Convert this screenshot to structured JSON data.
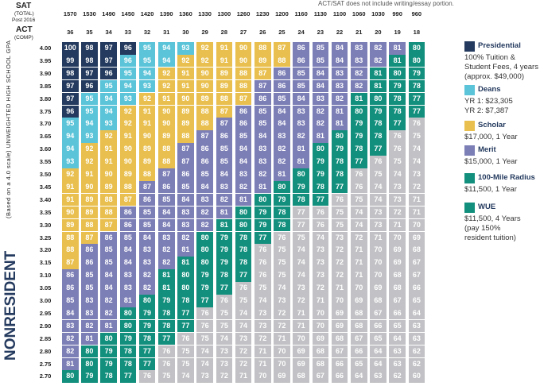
{
  "header": {
    "sat_label": "SAT",
    "sat_sub1": "(TOTAL)",
    "sat_sub2": "Post 2016",
    "act_label": "ACT",
    "act_sub": "(COMP)",
    "note": "ACT/SAT does not include writing/essay portion."
  },
  "sat_scores": [
    "1570",
    "1530",
    "1490",
    "1450",
    "1420",
    "1390",
    "1360",
    "1330",
    "1300",
    "1260",
    "1230",
    "1200",
    "1160",
    "1130",
    "1100",
    "1060",
    "1030",
    "990",
    "960"
  ],
  "act_scores": [
    "36",
    "35",
    "34",
    "33",
    "32",
    "31",
    "30",
    "29",
    "28",
    "27",
    "26",
    "25",
    "24",
    "23",
    "22",
    "21",
    "20",
    "19",
    "18"
  ],
  "gpa_values": [
    "4.00",
    "3.95",
    "3.90",
    "3.85",
    "3.80",
    "3.75",
    "3.70",
    "3.65",
    "3.60",
    "3.55",
    "3.50",
    "3.45",
    "3.40",
    "3.35",
    "3.30",
    "3.25",
    "3.20",
    "3.15",
    "3.10",
    "3.05",
    "3.00",
    "2.95",
    "2.90",
    "2.85",
    "2.80",
    "2.75",
    "2.70"
  ],
  "axis_label": "(Based on a 4.0 scale) UNWEIGHTED HIGH SCHOOL GPA",
  "side_label": "NONRESIDENT",
  "colors": {
    "P": "#243a5e",
    "D": "#5bc4d8",
    "S": "#e9c04f",
    "M": "#7c7eb6",
    "R": "#138f7d",
    "W": "#138f7d",
    "G": "#c2c2c6"
  },
  "grid": [
    [
      "P100",
      "P98",
      "P97",
      "P96",
      "D95",
      "D94",
      "D93",
      "S92",
      "S91",
      "S90",
      "S88",
      "S87",
      "M86",
      "M85",
      "M84",
      "M83",
      "M82",
      "M81",
      "R80"
    ],
    [
      "P99",
      "P98",
      "P97",
      "D96",
      "D95",
      "D94",
      "S92",
      "S92",
      "S91",
      "S90",
      "S89",
      "S88",
      "M86",
      "M85",
      "M84",
      "M83",
      "M82",
      "R81",
      "R80"
    ],
    [
      "P98",
      "P97",
      "P96",
      "D95",
      "D94",
      "S92",
      "S91",
      "S90",
      "S89",
      "S88",
      "S87",
      "M86",
      "M85",
      "M84",
      "M83",
      "M82",
      "R81",
      "R80",
      "R79"
    ],
    [
      "P97",
      "P96",
      "D95",
      "D94",
      "D93",
      "S92",
      "S91",
      "S90",
      "S89",
      "S88",
      "M87",
      "M86",
      "M85",
      "M84",
      "M83",
      "M82",
      "R81",
      "R79",
      "R78"
    ],
    [
      "P97",
      "D95",
      "D94",
      "D93",
      "S92",
      "S91",
      "S90",
      "S89",
      "S88",
      "S87",
      "M86",
      "M85",
      "M84",
      "M83",
      "M82",
      "R81",
      "R80",
      "R78",
      "R77"
    ],
    [
      "P96",
      "D95",
      "D94",
      "S92",
      "S91",
      "S90",
      "S89",
      "S88",
      "S87",
      "M86",
      "M85",
      "M84",
      "M83",
      "M82",
      "M81",
      "R80",
      "R79",
      "R78",
      "R77"
    ],
    [
      "D95",
      "D94",
      "D93",
      "S92",
      "S91",
      "S90",
      "S89",
      "S88",
      "M87",
      "M86",
      "M85",
      "M84",
      "M83",
      "M82",
      "M81",
      "R79",
      "R78",
      "R77",
      "G76"
    ],
    [
      "D94",
      "D93",
      "S92",
      "S91",
      "S90",
      "S89",
      "S88",
      "M87",
      "M86",
      "M85",
      "M84",
      "M83",
      "M82",
      "M81",
      "R80",
      "R79",
      "R78",
      "G76",
      "G75"
    ],
    [
      "D94",
      "S92",
      "S91",
      "S90",
      "S89",
      "S88",
      "M87",
      "M86",
      "M85",
      "M84",
      "M83",
      "M82",
      "M81",
      "R80",
      "R79",
      "R78",
      "R77",
      "G76",
      "G74"
    ],
    [
      "D93",
      "S92",
      "S91",
      "S90",
      "S89",
      "S88",
      "M87",
      "M86",
      "M85",
      "M84",
      "M83",
      "M82",
      "M81",
      "R79",
      "R78",
      "R77",
      "G76",
      "G75",
      "G74"
    ],
    [
      "S92",
      "S91",
      "S90",
      "S89",
      "S88",
      "M87",
      "M86",
      "M85",
      "M84",
      "M83",
      "M82",
      "M81",
      "R80",
      "R79",
      "R78",
      "G76",
      "G75",
      "G74",
      "G73"
    ],
    [
      "S91",
      "S90",
      "S89",
      "S88",
      "M87",
      "M86",
      "M85",
      "M84",
      "M83",
      "M82",
      "M81",
      "R80",
      "R79",
      "R78",
      "R77",
      "G76",
      "G74",
      "G73",
      "G72"
    ],
    [
      "S91",
      "S89",
      "S88",
      "S87",
      "M86",
      "M85",
      "M84",
      "M83",
      "M82",
      "M81",
      "R80",
      "R79",
      "R78",
      "R77",
      "G76",
      "G75",
      "G74",
      "G73",
      "G71"
    ],
    [
      "S90",
      "S89",
      "S88",
      "M86",
      "M85",
      "M84",
      "M83",
      "M82",
      "M81",
      "R80",
      "R79",
      "R78",
      "G77",
      "G76",
      "G75",
      "G74",
      "G73",
      "G72",
      "G71"
    ],
    [
      "S89",
      "S88",
      "S87",
      "M86",
      "M85",
      "M84",
      "M83",
      "M82",
      "R81",
      "R80",
      "R79",
      "R78",
      "G77",
      "G76",
      "G75",
      "G74",
      "G73",
      "G71",
      "G70"
    ],
    [
      "S88",
      "S87",
      "M86",
      "M85",
      "M84",
      "M83",
      "M82",
      "R80",
      "R79",
      "R78",
      "R77",
      "G76",
      "G75",
      "G74",
      "G73",
      "G72",
      "G71",
      "G70",
      "G69"
    ],
    [
      "S88",
      "M86",
      "M85",
      "M84",
      "M83",
      "M82",
      "M81",
      "R80",
      "R79",
      "R78",
      "G76",
      "G75",
      "G74",
      "G73",
      "G72",
      "G71",
      "G70",
      "G69",
      "G68"
    ],
    [
      "S87",
      "M86",
      "M85",
      "M84",
      "M83",
      "M82",
      "R81",
      "R80",
      "R79",
      "R78",
      "G76",
      "G75",
      "G74",
      "G73",
      "G72",
      "G71",
      "G70",
      "G69",
      "G67"
    ],
    [
      "M86",
      "M85",
      "M84",
      "M83",
      "M82",
      "R81",
      "R80",
      "R79",
      "R78",
      "R77",
      "G76",
      "G75",
      "G74",
      "G73",
      "G72",
      "G71",
      "G70",
      "G68",
      "G67"
    ],
    [
      "M86",
      "M85",
      "M84",
      "M83",
      "M82",
      "R81",
      "R80",
      "R79",
      "R77",
      "G76",
      "G75",
      "G74",
      "G73",
      "G72",
      "G71",
      "G70",
      "G69",
      "G68",
      "G66"
    ],
    [
      "M85",
      "M83",
      "M82",
      "M81",
      "R80",
      "R79",
      "R78",
      "R77",
      "G76",
      "G75",
      "G74",
      "G73",
      "G72",
      "G71",
      "G70",
      "G69",
      "G68",
      "G67",
      "G65"
    ],
    [
      "M84",
      "M83",
      "M82",
      "R80",
      "R79",
      "R78",
      "R77",
      "G76",
      "G75",
      "G74",
      "G73",
      "G72",
      "G71",
      "G70",
      "G69",
      "G68",
      "G67",
      "G66",
      "G64"
    ],
    [
      "M83",
      "M82",
      "M81",
      "R80",
      "R79",
      "R78",
      "R77",
      "G76",
      "G75",
      "G74",
      "G73",
      "G72",
      "G71",
      "G70",
      "G69",
      "G68",
      "G66",
      "G65",
      "G63"
    ],
    [
      "M82",
      "M81",
      "R80",
      "R79",
      "R78",
      "R77",
      "G76",
      "G75",
      "G74",
      "G73",
      "G72",
      "G71",
      "G70",
      "G69",
      "G68",
      "G67",
      "G65",
      "G64",
      "G63"
    ],
    [
      "M82",
      "R80",
      "R79",
      "R78",
      "R77",
      "G76",
      "G75",
      "G74",
      "G73",
      "G72",
      "G71",
      "G70",
      "G69",
      "G68",
      "G67",
      "G66",
      "G64",
      "G63",
      "G62"
    ],
    [
      "M81",
      "R80",
      "R79",
      "R78",
      "R77",
      "G76",
      "G75",
      "G74",
      "G73",
      "G72",
      "G71",
      "G70",
      "G69",
      "G68",
      "G66",
      "G65",
      "G64",
      "G63",
      "G62"
    ],
    [
      "R80",
      "R79",
      "R78",
      "R77",
      "G76",
      "G75",
      "G74",
      "G73",
      "G72",
      "G71",
      "G70",
      "G69",
      "G68",
      "G67",
      "G66",
      "G64",
      "G63",
      "G62",
      "G60"
    ]
  ],
  "legend": [
    {
      "key": "P",
      "title": "Presidential",
      "lines": [
        "100% Tuition &",
        "Student Fees, 4 years",
        "(approx. $49,000)"
      ]
    },
    {
      "key": "D",
      "title": "Deans",
      "lines": [
        "YR 1: $23,305",
        "YR 2: $7,387"
      ]
    },
    {
      "key": "S",
      "title": "Scholar",
      "lines": [
        "$17,000, 1 Year"
      ]
    },
    {
      "key": "M",
      "title": "Merit",
      "lines": [
        "$15,000, 1 Year"
      ]
    },
    {
      "key": "R",
      "title": "100-Mile Radius",
      "lines": [
        "$11,500, 1 Year"
      ]
    },
    {
      "key": "W",
      "title": "WUE",
      "lines": [
        "$11,500, 4 Years",
        "(pay 150%",
        "resident tuition)"
      ]
    }
  ]
}
